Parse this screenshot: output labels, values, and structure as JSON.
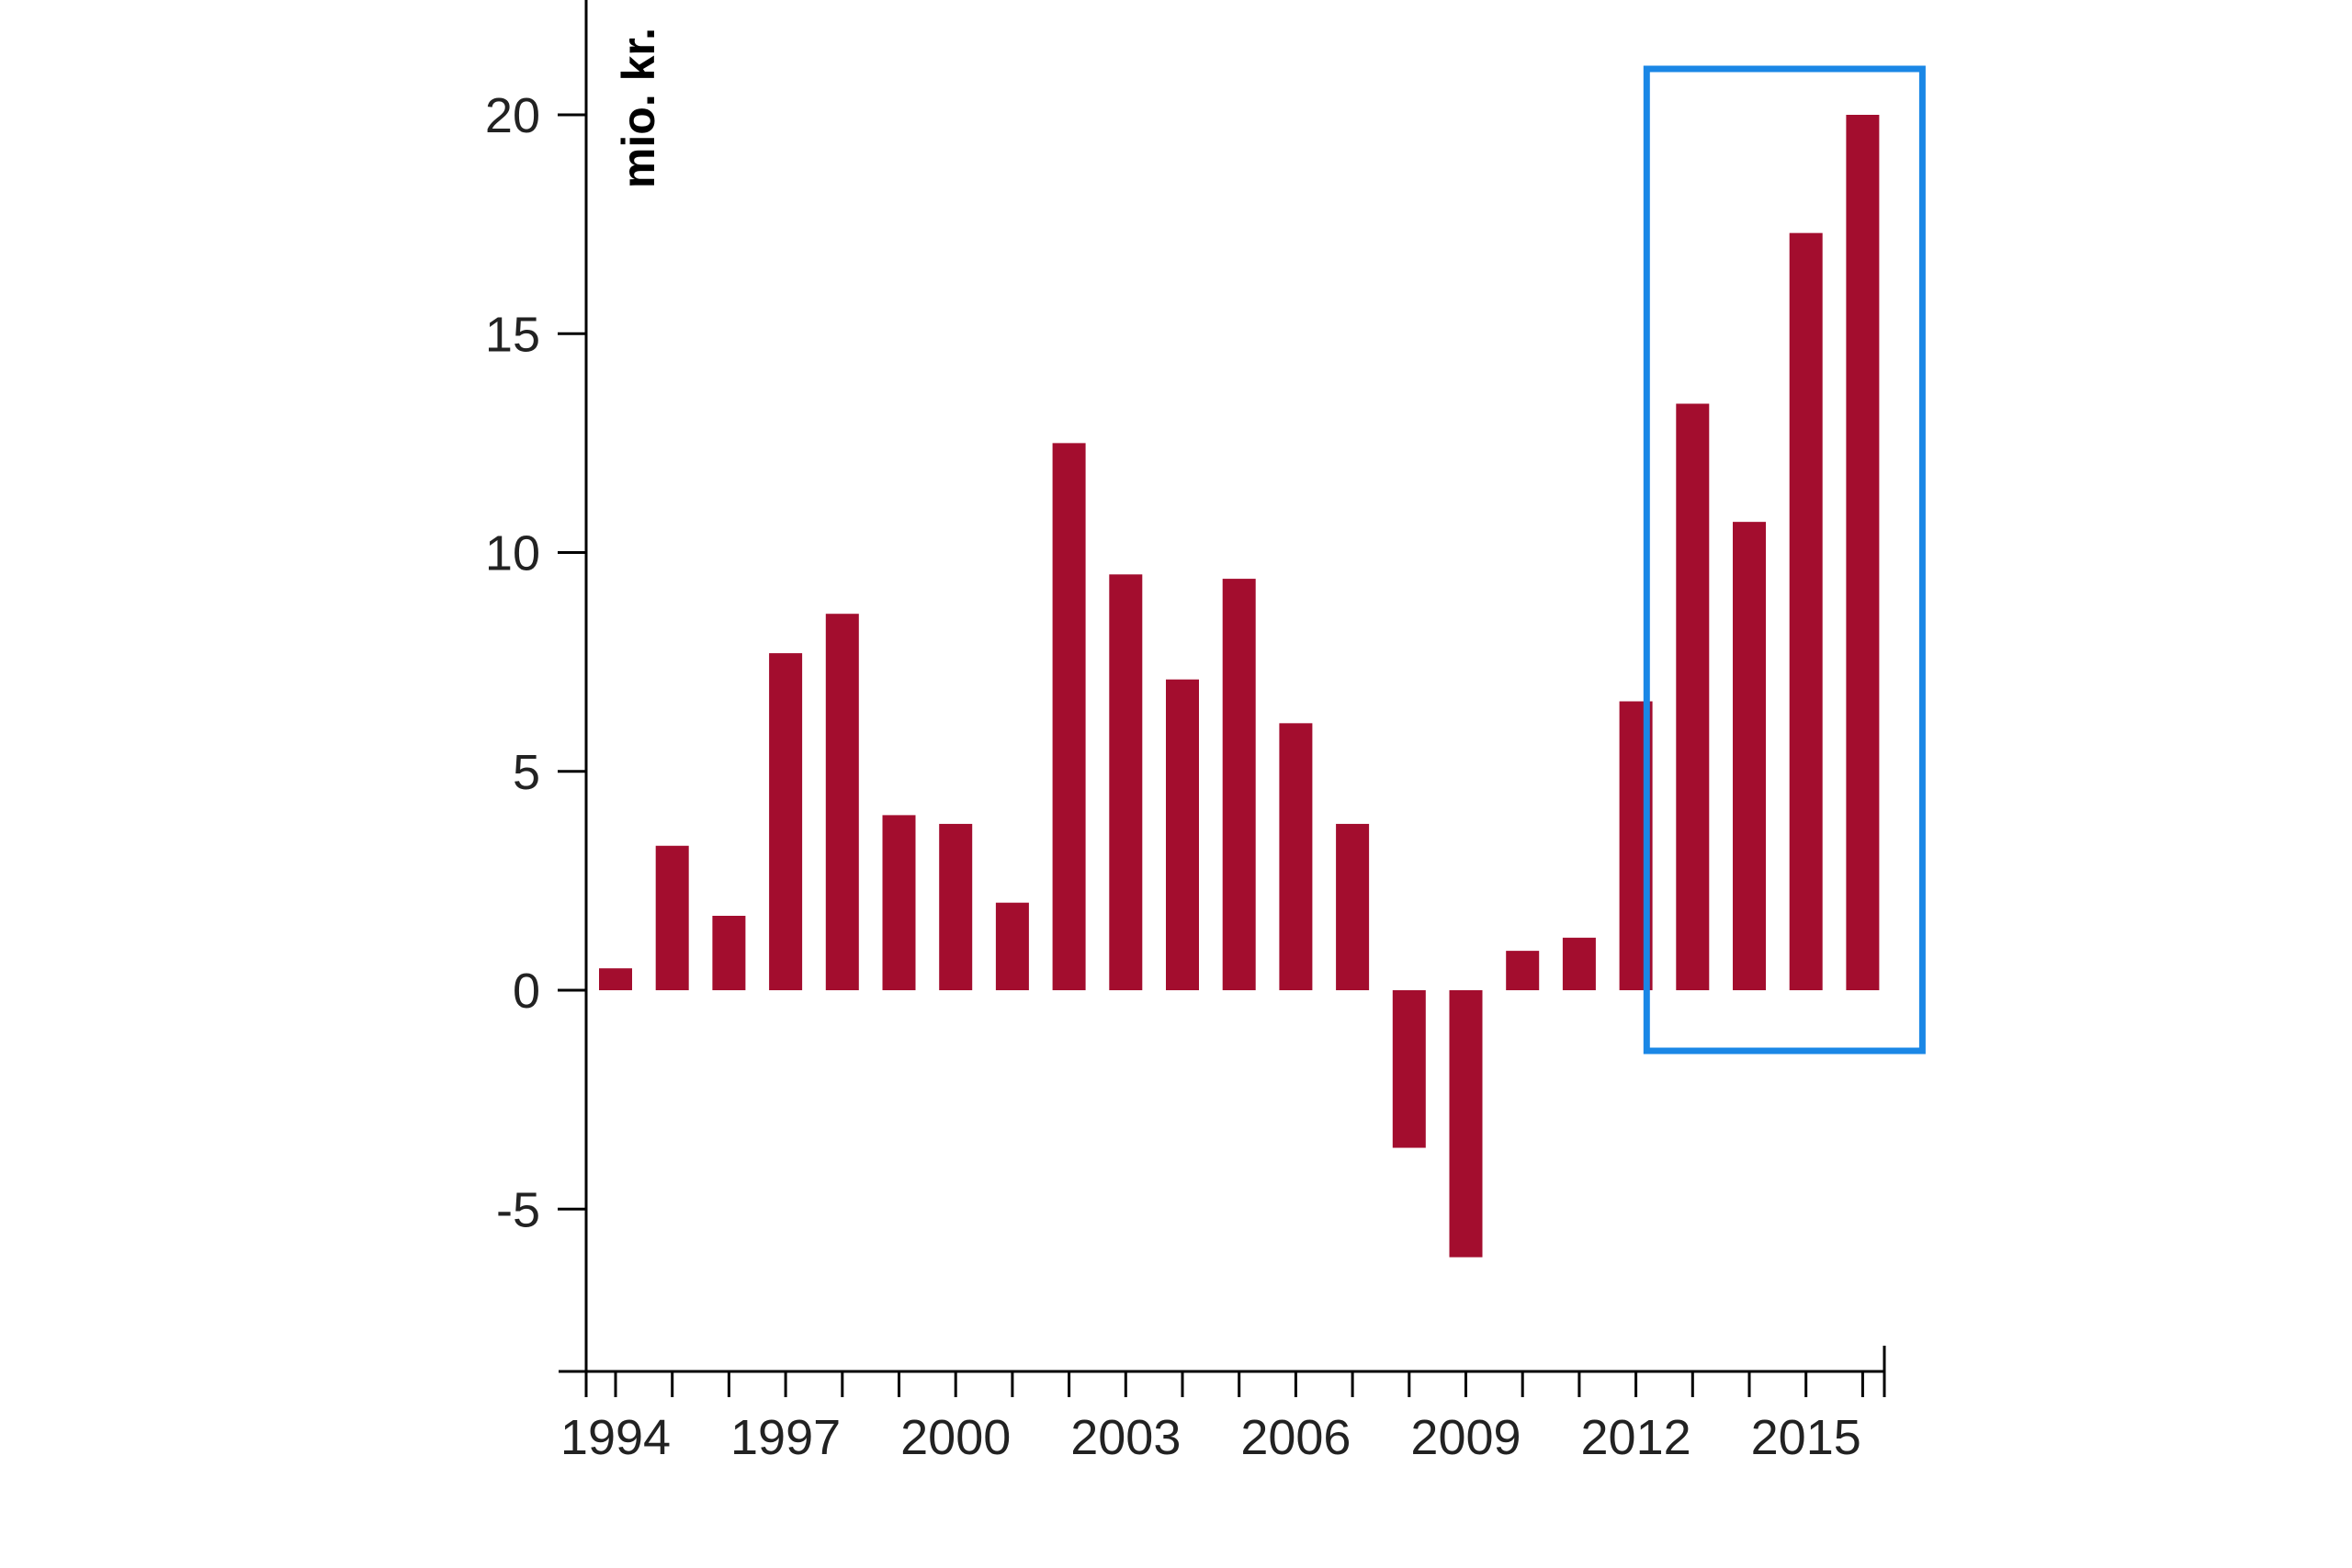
{
  "chart_data": {
    "type": "bar",
    "title": "",
    "xlabel": "",
    "ylabel": "mio. kr.",
    "ylim": [
      -8.7,
      22.5
    ],
    "yticks": [
      -5,
      0,
      5,
      10,
      15,
      20
    ],
    "xtick_labels": [
      "1994",
      "1997",
      "2000",
      "2003",
      "2006",
      "2009",
      "2012",
      "2015"
    ],
    "categories": [
      1994,
      1995,
      1996,
      1997,
      1998,
      1999,
      2000,
      2001,
      2002,
      2003,
      2004,
      2005,
      2006,
      2007,
      2008,
      2009,
      2010,
      2011,
      2012,
      2013,
      2014,
      2015,
      2016
    ],
    "values": [
      0.5,
      3.3,
      1.7,
      7.7,
      8.6,
      4.0,
      3.8,
      2.0,
      12.5,
      9.5,
      7.1,
      9.4,
      6.1,
      3.8,
      -3.6,
      -6.1,
      0.9,
      1.2,
      6.6,
      13.4,
      10.7,
      17.3,
      20.0
    ],
    "grid": false,
    "highlight": {
      "from": 2013,
      "to": 2016,
      "color": "#1a87e6"
    },
    "bar_color": "#a30d2e"
  }
}
